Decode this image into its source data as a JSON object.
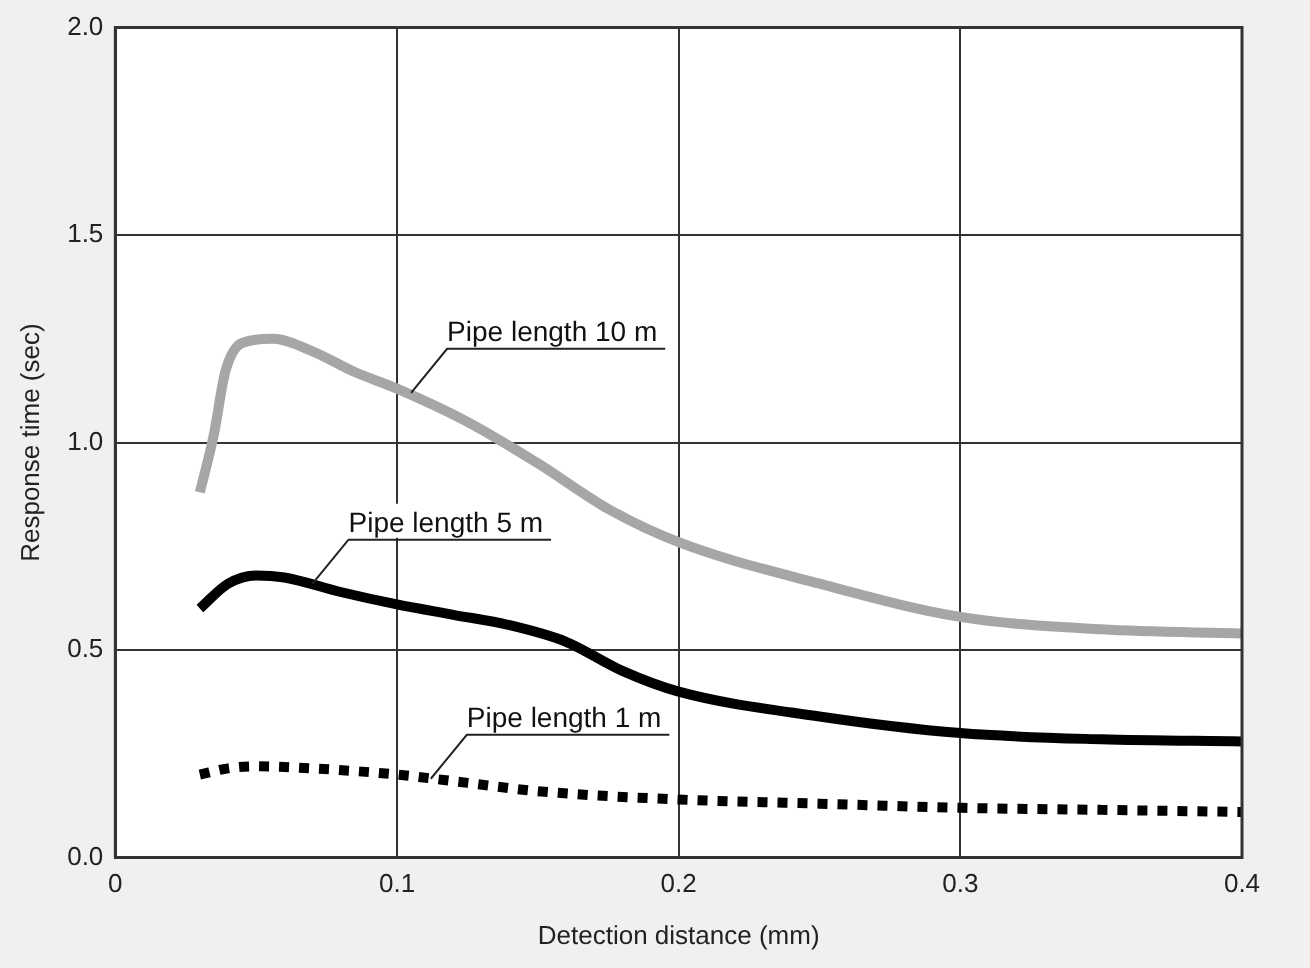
{
  "chart_data": {
    "type": "line",
    "xlabel": "Detection distance (mm)",
    "ylabel": "Response time (sec)",
    "xlim": [
      0,
      0.4
    ],
    "ylim": [
      0,
      2.0
    ],
    "xticks": [
      0,
      0.1,
      0.2,
      0.3,
      0.4
    ],
    "yticks": [
      {
        "value": 0,
        "label": "0.0"
      },
      {
        "value": 0.5,
        "label": "0.5"
      },
      {
        "value": 1,
        "label": "1.0"
      },
      {
        "value": 1.5,
        "label": "1.5"
      },
      {
        "value": 2,
        "label": "2.0"
      }
    ],
    "grid": true,
    "legend": false,
    "marker": "none",
    "series": [
      {
        "color": "#a6a6a6",
        "line_style": "solid",
        "x": [
          0.03,
          0.035,
          0.039,
          0.045,
          0.056,
          0.07,
          0.085,
          0.1,
          0.125,
          0.15,
          0.175,
          0.2,
          0.25,
          0.3,
          0.35,
          0.4
        ],
        "values": [
          0.88,
          1.02,
          1.17,
          1.24,
          1.25,
          1.22,
          1.17,
          1.13,
          1.05,
          0.95,
          0.84,
          0.76,
          0.66,
          0.58,
          0.55,
          0.54
        ]
      },
      {
        "color": "#000000",
        "line_style": "solid",
        "x": [
          0.03,
          0.04,
          0.05,
          0.06,
          0.08,
          0.1,
          0.12,
          0.14,
          0.16,
          0.18,
          0.2,
          0.25,
          0.3,
          0.35,
          0.4
        ],
        "values": [
          0.6,
          0.66,
          0.68,
          0.675,
          0.64,
          0.61,
          0.585,
          0.56,
          0.52,
          0.45,
          0.4,
          0.34,
          0.3,
          0.285,
          0.28
        ]
      },
      {
        "color": "#000000",
        "line_style": "dotted",
        "x": [
          0.03,
          0.04,
          0.05,
          0.07,
          0.1,
          0.125,
          0.15,
          0.2,
          0.25,
          0.3,
          0.35,
          0.4
        ],
        "values": [
          0.2,
          0.215,
          0.22,
          0.215,
          0.2,
          0.18,
          0.16,
          0.14,
          0.13,
          0.12,
          0.115,
          0.11
        ]
      }
    ],
    "annotations": [
      {
        "text": "Pipe length 10 m",
        "x": 0.105,
        "y": 1.12
      },
      {
        "text": "Pipe length 5 m",
        "x": 0.07,
        "y": 0.66
      },
      {
        "text": "Pipe length 1 m",
        "x": 0.112,
        "y": 0.19
      }
    ]
  }
}
